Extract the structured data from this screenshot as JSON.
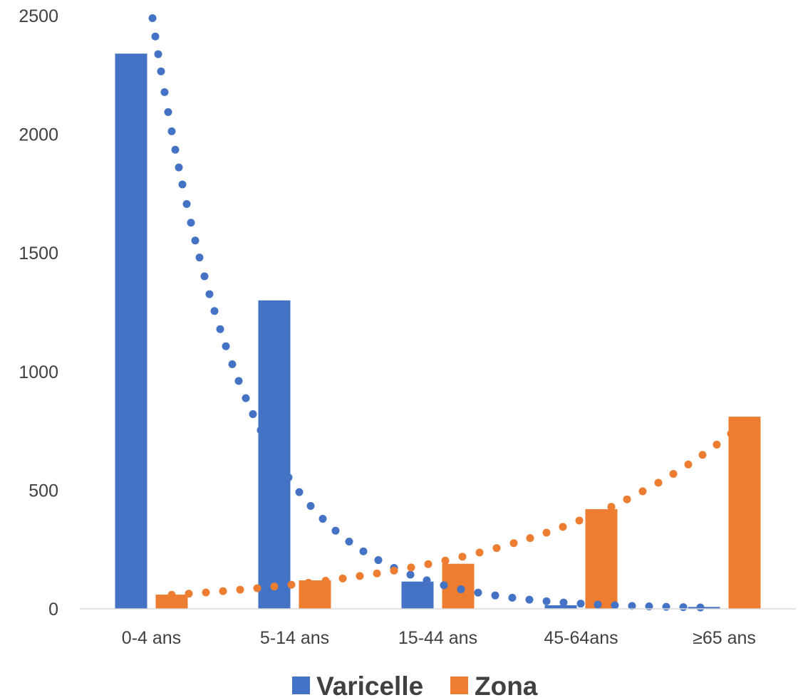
{
  "chart_data": {
    "type": "bar",
    "title": "",
    "xlabel": "",
    "ylabel": "",
    "categories": [
      "0-4 ans",
      "5-14 ans",
      "15-44 ans",
      "45-64ans",
      "≥65 ans"
    ],
    "series": [
      {
        "name": "Varicelle",
        "color": "#4472C4",
        "values": [
          2340,
          1300,
          115,
          15,
          8
        ]
      },
      {
        "name": "Zona",
        "color": "#ED7D31",
        "values": [
          60,
          120,
          190,
          420,
          810
        ]
      }
    ],
    "trendlines": [
      {
        "series": "Varicelle",
        "style": "dotted",
        "kind": "exponential",
        "color": "#4472C4"
      },
      {
        "series": "Zona",
        "style": "dotted",
        "kind": "exponential",
        "color": "#ED7D31"
      }
    ],
    "yticks": [
      0,
      500,
      1000,
      1500,
      2000,
      2500
    ],
    "ylim": [
      0,
      2500
    ],
    "grid": false,
    "legend_position": "bottom"
  }
}
